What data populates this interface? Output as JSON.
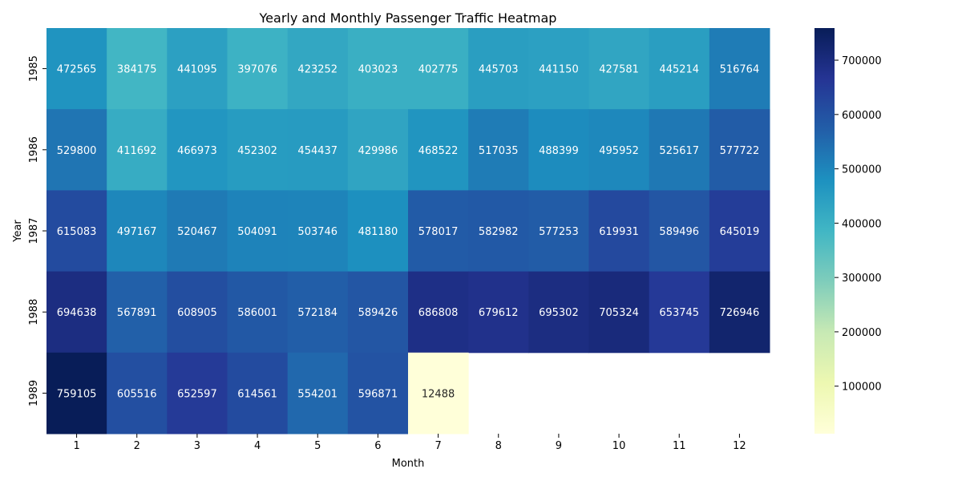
{
  "chart_data": {
    "type": "heatmap",
    "title": "Yearly and Monthly Passenger Traffic Heatmap",
    "xlabel": "Month",
    "ylabel": "Year",
    "x_categories": [
      "1",
      "2",
      "3",
      "4",
      "5",
      "6",
      "7",
      "8",
      "9",
      "10",
      "11",
      "12"
    ],
    "y_categories": [
      "1985",
      "1986",
      "1987",
      "1988",
      "1989"
    ],
    "values": [
      [
        472565,
        384175,
        441095,
        397076,
        423252,
        403023,
        402775,
        445703,
        441150,
        427581,
        445214,
        516764
      ],
      [
        529800,
        411692,
        466973,
        452302,
        454437,
        429986,
        468522,
        517035,
        488399,
        495952,
        525617,
        577722
      ],
      [
        615083,
        497167,
        520467,
        504091,
        503746,
        481180,
        578017,
        582982,
        577253,
        619931,
        589496,
        645019
      ],
      [
        694638,
        567891,
        608905,
        586001,
        572184,
        589426,
        686808,
        679612,
        695302,
        705324,
        653745,
        726946
      ],
      [
        759105,
        605516,
        652597,
        614561,
        554201,
        596871,
        12488,
        null,
        null,
        null,
        null,
        null
      ]
    ],
    "colormap": "YlGnBu",
    "colorbar": {
      "range": [
        12488,
        759105
      ],
      "ticks": [
        100000,
        200000,
        300000,
        400000,
        500000,
        600000,
        700000
      ]
    }
  }
}
